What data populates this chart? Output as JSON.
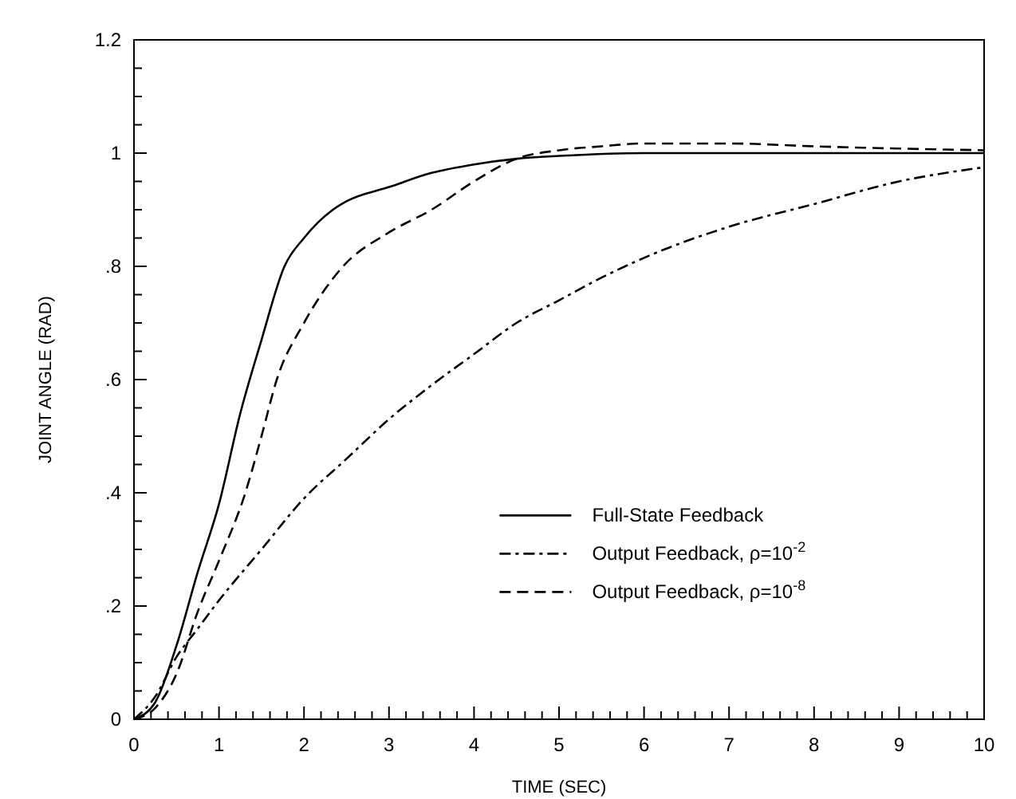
{
  "chart_data": {
    "type": "line",
    "xlabel": "TIME (SEC)",
    "ylabel": "JOINT ANGLE (RAD)",
    "xlim": [
      0,
      10
    ],
    "ylim": [
      0,
      1.2
    ],
    "xticks": [
      0,
      {
        "value": 0.2,
        "label": null
      },
      {
        "value": 0.4,
        "label": null
      },
      {
        "value": 0.6,
        "label": null
      },
      {
        "value": 0.8,
        "label": null
      },
      1,
      {
        "value": 1.2,
        "label": null
      },
      {
        "value": 1.4,
        "label": null
      },
      {
        "value": 1.6,
        "label": null
      },
      {
        "value": 1.8,
        "label": null
      },
      2,
      {
        "value": 2.2,
        "label": null
      },
      {
        "value": 2.4,
        "label": null
      },
      {
        "value": 2.6,
        "label": null
      },
      {
        "value": 2.8,
        "label": null
      },
      3,
      {
        "value": 3.2,
        "label": null
      },
      {
        "value": 3.4,
        "label": null
      },
      {
        "value": 3.6,
        "label": null
      },
      {
        "value": 3.8,
        "label": null
      },
      4,
      {
        "value": 4.2,
        "label": null
      },
      {
        "value": 4.4,
        "label": null
      },
      {
        "value": 4.6,
        "label": null
      },
      {
        "value": 4.8,
        "label": null
      },
      5,
      {
        "value": 5.2,
        "label": null
      },
      {
        "value": 5.4,
        "label": null
      },
      {
        "value": 5.6,
        "label": null
      },
      {
        "value": 5.8,
        "label": null
      },
      6,
      {
        "value": 6.2,
        "label": null
      },
      {
        "value": 6.4,
        "label": null
      },
      {
        "value": 6.6,
        "label": null
      },
      {
        "value": 6.8,
        "label": null
      },
      7,
      {
        "value": 7.2,
        "label": null
      },
      {
        "value": 7.4,
        "label": null
      },
      {
        "value": 7.6,
        "label": null
      },
      {
        "value": 7.8,
        "label": null
      },
      8,
      {
        "value": 8.2,
        "label": null
      },
      {
        "value": 8.4,
        "label": null
      },
      {
        "value": 8.6,
        "label": null
      },
      {
        "value": 8.8,
        "label": null
      },
      9,
      {
        "value": 9.2,
        "label": null
      },
      {
        "value": 9.4,
        "label": null
      },
      {
        "value": 9.6,
        "label": null
      },
      {
        "value": 9.8,
        "label": null
      },
      10
    ],
    "yticks": [
      0,
      {
        "value": 0.05,
        "label": null
      },
      {
        "value": 0.1,
        "label": null
      },
      {
        "value": 0.15,
        "label": null
      },
      {
        "value": 0.2,
        "label": ".2"
      },
      {
        "value": 0.25,
        "label": null
      },
      {
        "value": 0.3,
        "label": null
      },
      {
        "value": 0.35,
        "label": null
      },
      {
        "value": 0.4,
        "label": ".4"
      },
      {
        "value": 0.45,
        "label": null
      },
      {
        "value": 0.5,
        "label": null
      },
      {
        "value": 0.55,
        "label": null
      },
      {
        "value": 0.6,
        "label": ".6"
      },
      {
        "value": 0.65,
        "label": null
      },
      {
        "value": 0.7,
        "label": null
      },
      {
        "value": 0.75,
        "label": null
      },
      {
        "value": 0.8,
        "label": ".8"
      },
      {
        "value": 0.85,
        "label": null
      },
      {
        "value": 0.9,
        "label": null
      },
      {
        "value": 0.95,
        "label": null
      },
      1,
      {
        "value": 1.05,
        "label": null
      },
      {
        "value": 1.1,
        "label": null
      },
      {
        "value": 1.15,
        "label": null
      },
      {
        "value": 1.2,
        "label": "1.2"
      }
    ],
    "grid": false,
    "legend": "bottom right",
    "series": [
      {
        "name": "Full-State Feedback",
        "color": "#000000",
        "line_style": "solid",
        "x": [
          0,
          0.25,
          0.5,
          0.75,
          1,
          1.25,
          1.5,
          1.77,
          2,
          2.34,
          2.5,
          3,
          3.5,
          4,
          4.5,
          5,
          6,
          8,
          10
        ],
        "values": [
          0,
          0.03,
          0.13,
          0.26,
          0.38,
          0.54,
          0.67,
          0.8,
          0.85,
          0.9,
          0.915,
          0.94,
          0.965,
          0.98,
          0.99,
          0.995,
          1,
          1,
          1
        ]
      },
      {
        "name": "Output Feedback, ρ=10$^{-2}$",
        "color": "#000000",
        "line_style": "dashdot",
        "x": [
          0,
          0.25,
          0.5,
          0.75,
          1,
          1.5,
          2,
          2.5,
          3,
          3.5,
          4,
          4.5,
          5,
          5.5,
          6,
          7,
          8,
          9,
          10
        ],
        "values": [
          0,
          0.04,
          0.11,
          0.16,
          0.21,
          0.3,
          0.39,
          0.46,
          0.53,
          0.59,
          0.645,
          0.7,
          0.74,
          0.78,
          0.815,
          0.87,
          0.91,
          0.95,
          0.975
        ]
      },
      {
        "name": "Output Feedback, ρ=10$^{-8}$",
        "color": "#000000",
        "line_style": "dashed",
        "x": [
          0,
          0.25,
          0.5,
          0.75,
          1,
          1.31,
          1.5,
          1.68,
          2,
          2.46,
          3,
          3.5,
          4,
          4.5,
          5,
          5.5,
          6,
          7,
          8,
          9,
          10
        ],
        "values": [
          0,
          0.02,
          0.08,
          0.19,
          0.28,
          0.4,
          0.5,
          0.6,
          0.7,
          0.8,
          0.86,
          0.9,
          0.95,
          0.99,
          1.005,
          1.012,
          1.017,
          1.017,
          1.012,
          1.008,
          1.005
        ]
      }
    ]
  }
}
